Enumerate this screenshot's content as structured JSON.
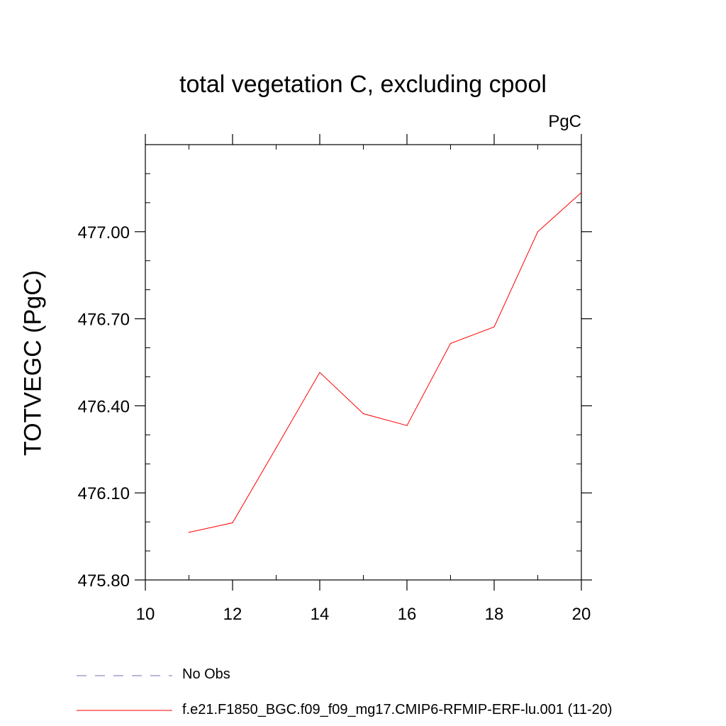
{
  "chart_data": {
    "type": "line",
    "title": "total vegetation C, excluding cpool",
    "units_label": "PgC",
    "xlabel": "",
    "ylabel": "TOTVEGC  (PgC)",
    "xlim": [
      10,
      20
    ],
    "ylim": [
      475.8,
      477.3
    ],
    "x_ticks": [
      10,
      12,
      14,
      16,
      18,
      20
    ],
    "y_ticks": [
      "475.80",
      "476.10",
      "476.40",
      "476.70",
      "477.00"
    ],
    "series": [
      {
        "name": "f.e21.F1850_BGC.f09_f09_mg17.CMIP6-RFMIP-ERF-lu.001 (11-20)",
        "color": "#ff0000",
        "style": "solid",
        "x": [
          11,
          12,
          13,
          14,
          15,
          16,
          17,
          18,
          19,
          20
        ],
        "y": [
          475.964,
          475.997,
          476.255,
          476.515,
          476.373,
          476.332,
          476.615,
          476.672,
          477.0,
          477.135
        ]
      }
    ],
    "legend": [
      {
        "label": "No Obs",
        "color": "#7b68ae",
        "style": "dashed"
      },
      {
        "label": "f.e21.F1850_BGC.f09_f09_mg17.CMIP6-RFMIP-ERF-lu.001 (11-20)",
        "color": "#ff0000",
        "style": "solid"
      }
    ]
  }
}
